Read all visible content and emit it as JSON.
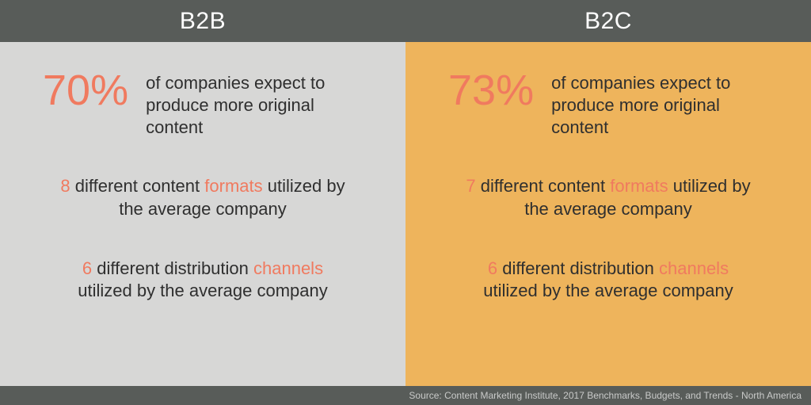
{
  "colors": {
    "header_bg": "#585c59",
    "header_text": "#ffffff",
    "panel_left_bg": "#d7d7d6",
    "panel_right_bg": "#eeb45c",
    "accent": "#f07a5f",
    "body_text": "#2f2f2f",
    "footer_text": "#c9cac9"
  },
  "typography": {
    "header_fontsize": 30,
    "big_pct_fontsize": 54,
    "body_fontsize": 22,
    "footer_fontsize": 12,
    "weight": 300
  },
  "b2b": {
    "title": "B2B",
    "big_pct": "70%",
    "pct_desc": "of companies expect to produce more original content",
    "formats_num": "8",
    "formats_pre": " different content ",
    "formats_word": "formats",
    "formats_post": " utilized by the average company",
    "channels_num": "6",
    "channels_pre": " different distribution ",
    "channels_word": "channels",
    "channels_post": " utilized by the average company"
  },
  "b2c": {
    "title": "B2C",
    "big_pct": "73%",
    "pct_desc": "of companies expect to produce more original content",
    "formats_num": "7",
    "formats_pre": " different content ",
    "formats_word": "formats",
    "formats_post": " utilized by the average company",
    "channels_num": "6",
    "channels_pre": " different distribution ",
    "channels_word": "channels",
    "channels_post": " utilized by the average company"
  },
  "footer": "Source: Content Marketing Institute, 2017 Benchmarks, Budgets, and Trends - North America"
}
